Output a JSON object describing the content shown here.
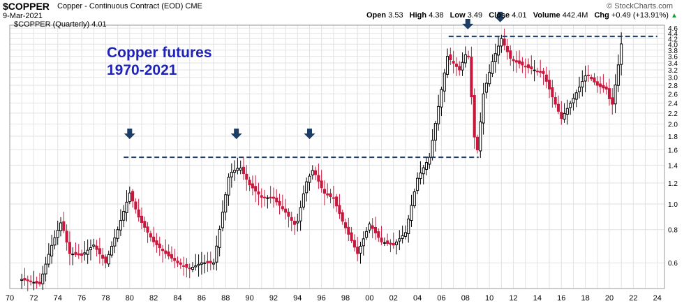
{
  "header": {
    "symbol": "$COPPER",
    "subtitle": "Copper - Continuous Contract (EOD) CME",
    "date": "9-Mar-2021",
    "credit": "© StockCharts.com",
    "stats": {
      "open_label": "Open",
      "open": "3.53",
      "high_label": "High",
      "high": "4.38",
      "low_label": "Low",
      "low": "3.49",
      "close_label": "Close",
      "close": "4.01",
      "volume_label": "Volume",
      "volume": "442.4M",
      "chg_label": "Chg",
      "chg": "+0.49 (+13.91%)",
      "chg_arrow": "▲"
    },
    "legend": "$COPPER (Quarterly) 4.01"
  },
  "annotation": {
    "line1": "Copper futures",
    "line2": "1970-2021"
  },
  "colors": {
    "up": "#000000",
    "down": "#c8173c",
    "resistance": "#1c3e66",
    "arrow": "#1c3e66",
    "annotation": "#1f22b8",
    "grid": "#e2e2e2"
  },
  "chart_data": {
    "type": "candlestick",
    "scale": "log",
    "x_range": [
      1970,
      2024.6
    ],
    "y_range": [
      0.48,
      4.72
    ],
    "x_tick_labels": [
      "70",
      "72",
      "74",
      "76",
      "78",
      "80",
      "82",
      "84",
      "86",
      "88",
      "90",
      "92",
      "94",
      "96",
      "98",
      "00",
      "02",
      "04",
      "06",
      "08",
      "10",
      "12",
      "14",
      "16",
      "18",
      "20",
      "22",
      "24"
    ],
    "x_tick_values": [
      1970,
      1972,
      1974,
      1976,
      1978,
      1980,
      1982,
      1984,
      1986,
      1988,
      1990,
      1992,
      1994,
      1996,
      1998,
      2000,
      2002,
      2004,
      2006,
      2008,
      2010,
      2012,
      2014,
      2016,
      2018,
      2020,
      2022,
      2024
    ],
    "y_tick_labels": [
      "0.6",
      "0.8",
      "1.0",
      "1.2",
      "1.4",
      "1.6",
      "1.8",
      "2.0",
      "2.2",
      "2.4",
      "2.6",
      "2.8",
      "3.0",
      "3.2",
      "3.4",
      "3.6",
      "3.8",
      "4.0",
      "4.2",
      "4.4",
      "4.6"
    ],
    "y_tick_values": [
      0.6,
      0.8,
      1.0,
      1.2,
      1.4,
      1.6,
      1.8,
      2.0,
      2.2,
      2.4,
      2.6,
      2.8,
      3.0,
      3.2,
      3.4,
      3.6,
      3.8,
      4.0,
      4.2,
      4.4,
      4.6
    ],
    "grid": true,
    "resistance_lines": [
      {
        "level": 1.5,
        "x_start": 1979.5,
        "x_end": 2009.1
      },
      {
        "level": 4.28,
        "x_start": 2006.6,
        "x_end": 2024.0
      }
    ],
    "arrows": [
      {
        "x": 1980.0,
        "price": 1.82
      },
      {
        "x": 1988.9,
        "price": 1.82
      },
      {
        "x": 1995.0,
        "price": 1.82
      },
      {
        "x": 2008.2,
        "price": 4.72
      },
      {
        "x": 2010.9,
        "price": 5.02
      }
    ],
    "anchors": [
      [
        1971.0,
        0.52
      ],
      [
        1972.5,
        0.5
      ],
      [
        1973.4,
        0.68
      ],
      [
        1974.3,
        0.86
      ],
      [
        1975.0,
        0.65
      ],
      [
        1976.0,
        0.64
      ],
      [
        1977.0,
        0.7
      ],
      [
        1978.0,
        0.6
      ],
      [
        1979.0,
        0.8
      ],
      [
        1980.0,
        1.1
      ],
      [
        1980.8,
        0.88
      ],
      [
        1982.0,
        0.72
      ],
      [
        1983.0,
        0.65
      ],
      [
        1984.0,
        0.6
      ],
      [
        1985.0,
        0.57
      ],
      [
        1986.0,
        0.6
      ],
      [
        1987.0,
        0.6
      ],
      [
        1987.6,
        0.85
      ],
      [
        1988.3,
        1.3
      ],
      [
        1989.2,
        1.38
      ],
      [
        1990.0,
        1.18
      ],
      [
        1991.0,
        1.06
      ],
      [
        1992.0,
        1.05
      ],
      [
        1993.0,
        0.93
      ],
      [
        1993.9,
        0.82
      ],
      [
        1994.7,
        1.2
      ],
      [
        1995.3,
        1.35
      ],
      [
        1996.2,
        1.1
      ],
      [
        1997.0,
        1.05
      ],
      [
        1997.8,
        0.85
      ],
      [
        1999.0,
        0.65
      ],
      [
        2000.0,
        0.84
      ],
      [
        2001.0,
        0.72
      ],
      [
        2002.0,
        0.7
      ],
      [
        2003.0,
        0.78
      ],
      [
        2004.0,
        1.25
      ],
      [
        2005.0,
        1.5
      ],
      [
        2006.0,
        2.7
      ],
      [
        2006.5,
        3.6
      ],
      [
        2007.5,
        3.2
      ],
      [
        2008.2,
        3.85
      ],
      [
        2008.9,
        1.45
      ],
      [
        2009.5,
        2.6
      ],
      [
        2010.3,
        3.5
      ],
      [
        2011.0,
        4.2
      ],
      [
        2011.8,
        3.5
      ],
      [
        2013.0,
        3.3
      ],
      [
        2014.5,
        3.1
      ],
      [
        2015.3,
        2.5
      ],
      [
        2016.0,
        2.1
      ],
      [
        2017.0,
        2.5
      ],
      [
        2018.1,
        3.1
      ],
      [
        2019.0,
        2.8
      ],
      [
        2019.8,
        2.7
      ],
      [
        2020.2,
        2.3
      ],
      [
        2020.6,
        3.0
      ],
      [
        2021.0,
        4.01
      ]
    ]
  }
}
